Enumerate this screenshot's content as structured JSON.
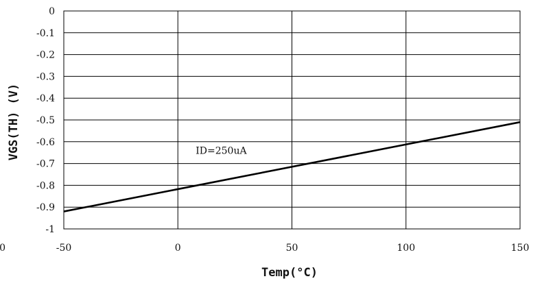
{
  "chart_data": {
    "type": "line",
    "xlabel": "Temp(°C)",
    "ylabel": "VGS(TH) (V)",
    "xlim": [
      -50,
      150
    ],
    "ylim": [
      -1,
      0
    ],
    "x_ticks": [
      -50,
      0,
      50,
      100,
      150
    ],
    "x_tick_labels": [
      "-50",
      "0",
      "50",
      "100",
      "150"
    ],
    "y_ticks": [
      0,
      -0.1,
      -0.2,
      -0.3,
      -0.4,
      -0.5,
      -0.6,
      -0.7,
      -0.8,
      -0.9,
      -1
    ],
    "y_tick_labels": [
      "0",
      "-0.1",
      "-0.2",
      "-0.3",
      "-0.4",
      "-0.5",
      "-0.6",
      "-0.7",
      "-0.8",
      "-0.9",
      "-1"
    ],
    "grid": true,
    "series": [
      {
        "x": [
          -50,
          150
        ],
        "values": [
          -0.92,
          -0.51
        ]
      }
    ],
    "annotations": [
      {
        "text": "ID=250uA",
        "x": 19,
        "y": -0.64
      }
    ],
    "clipped_tick_label": "50"
  }
}
